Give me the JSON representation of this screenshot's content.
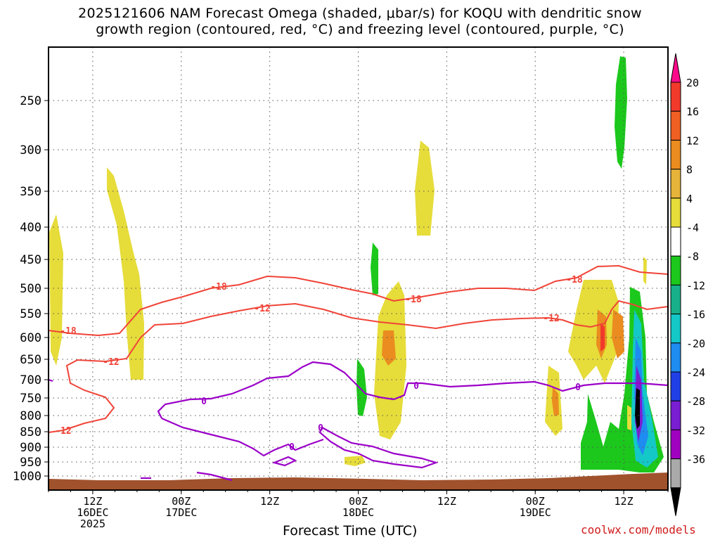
{
  "title_line1": "2025121606 NAM Forecast Omega (shaded, μbar/s) for KOQU with dendritic snow",
  "title_line2": "growth region (contoured, red, °C) and freezing level (contoured, purple, °C)",
  "xlabel": "Forecast Time (UTC)",
  "credit": "coolwx.com/models",
  "colors": {
    "frame": "#000000",
    "grid": "#555555",
    "terrain": "#a0522d",
    "dgz_contour": "#f04438",
    "freezing_contour": "#9b00c8"
  },
  "chart_data": {
    "type": "heatmap",
    "description_of_axes": "x = forecast valid time (UTC), y = pressure level (hPa, decreasing upward)",
    "y_ticks": [
      "250",
      "300",
      "350",
      "400",
      "450",
      "500",
      "550",
      "600",
      "650",
      "700",
      "750",
      "800",
      "850",
      "900",
      "950",
      "1000"
    ],
    "y_values": [
      250,
      300,
      350,
      400,
      450,
      500,
      550,
      600,
      650,
      700,
      750,
      800,
      850,
      900,
      950,
      1000
    ],
    "x_ticks": [
      {
        "lines": [
          "12Z",
          "16DEC",
          "2025"
        ]
      },
      {
        "lines": [
          "00Z",
          "17DEC"
        ]
      },
      {
        "lines": [
          "12Z"
        ]
      },
      {
        "lines": [
          "00Z",
          "18DEC"
        ]
      },
      {
        "lines": [
          "12Z"
        ]
      },
      {
        "lines": [
          "00Z",
          "19DEC"
        ]
      },
      {
        "lines": [
          "12Z"
        ]
      }
    ],
    "x_range_hours": [
      6,
      90
    ],
    "x_tick_hours": [
      12,
      24,
      36,
      48,
      60,
      72,
      84
    ],
    "colorbar": {
      "labels": [
        "20",
        "16",
        "12",
        "8",
        "4",
        "-4",
        "-8",
        "-12",
        "-16",
        "-20",
        "-24",
        "-28",
        "-32",
        "-36"
      ],
      "colors": [
        "#ff0a8a",
        "#f23a2a",
        "#f06022",
        "#ea8c20",
        "#e6b43a",
        "#e6dc3a",
        "#ffffff",
        "#1cc81c",
        "#18b08a",
        "#14c8c8",
        "#1e8cf0",
        "#2040e6",
        "#7a1ed2",
        "#a000c0",
        "#aaaaaa",
        "#000000"
      ]
    },
    "contour_labels": {
      "dgz": [
        "-18",
        "-12",
        "-18",
        "-12",
        "-18",
        "-12",
        "-18",
        "-12",
        "-12"
      ],
      "freezing": [
        "0",
        "0",
        "0",
        "0",
        "0"
      ]
    }
  }
}
